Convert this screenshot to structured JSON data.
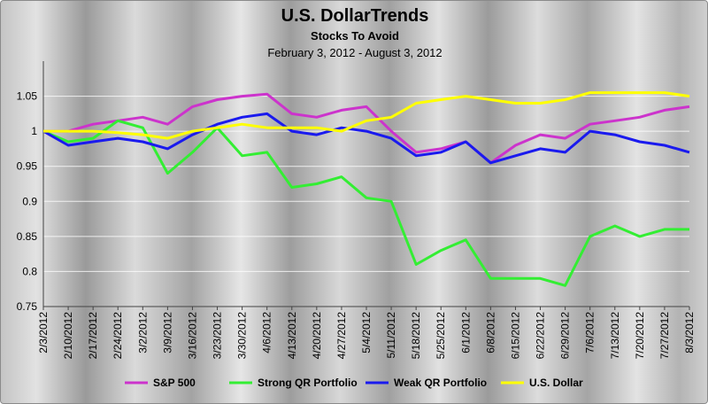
{
  "chart_data": {
    "type": "line",
    "title": "U.S. DollarTrends",
    "subtitle": "Stocks To Avoid",
    "date_range": "February 3, 2012 - August 3, 2012",
    "xlabel": "",
    "ylabel": "",
    "ylim": [
      0.75,
      1.1
    ],
    "yticks": [
      "0.75",
      "0.8",
      "0.85",
      "0.9",
      "0.95",
      "1",
      "1.05"
    ],
    "grid": true,
    "legend_position": "bottom",
    "categories": [
      "2/3/2012",
      "2/10/2012",
      "2/17/2012",
      "2/24/2012",
      "3/2/2012",
      "3/9/2012",
      "3/16/2012",
      "3/23/2012",
      "3/30/2012",
      "4/6/2012",
      "4/13/2012",
      "4/20/2012",
      "4/27/2012",
      "5/4/2012",
      "5/11/2012",
      "5/18/2012",
      "5/25/2012",
      "6/1/2012",
      "6/8/2012",
      "6/15/2012",
      "6/22/2012",
      "6/29/2012",
      "7/6/2012",
      "7/13/2012",
      "7/20/2012",
      "7/27/2012",
      "8/3/2012"
    ],
    "series": [
      {
        "name": "S&P 500",
        "color": "#cc33cc",
        "values": [
          1.0,
          1.0,
          1.01,
          1.015,
          1.02,
          1.01,
          1.035,
          1.045,
          1.05,
          1.053,
          1.025,
          1.02,
          1.03,
          1.035,
          1.0,
          0.97,
          0.975,
          0.985,
          0.955,
          0.98,
          0.995,
          0.99,
          1.01,
          1.015,
          1.02,
          1.03,
          1.035
        ]
      },
      {
        "name": "Strong QR Portfolio",
        "color": "#33ee33",
        "values": [
          1.0,
          0.985,
          0.99,
          1.015,
          1.005,
          0.94,
          0.97,
          1.005,
          0.965,
          0.97,
          0.92,
          0.925,
          0.935,
          0.905,
          0.9,
          0.81,
          0.83,
          0.845,
          0.79,
          0.79,
          0.79,
          0.78,
          0.85,
          0.865,
          0.85,
          0.86,
          0.86
        ]
      },
      {
        "name": "Weak QR Portfolio",
        "color": "#1a1aee",
        "values": [
          1.0,
          0.98,
          0.985,
          0.99,
          0.985,
          0.975,
          0.995,
          1.01,
          1.02,
          1.025,
          1.0,
          0.995,
          1.005,
          1.0,
          0.99,
          0.965,
          0.97,
          0.985,
          0.955,
          0.965,
          0.975,
          0.97,
          1.0,
          0.995,
          0.985,
          0.98,
          0.97
        ]
      },
      {
        "name": "U.S. Dollar",
        "color": "#ffff00",
        "values": [
          1.0,
          1.0,
          1.0,
          0.998,
          0.995,
          0.99,
          1.0,
          1.005,
          1.01,
          1.005,
          1.005,
          1.005,
          1.0,
          1.015,
          1.02,
          1.04,
          1.045,
          1.05,
          1.045,
          1.04,
          1.04,
          1.045,
          1.055,
          1.055,
          1.055,
          1.055,
          1.05
        ]
      }
    ]
  }
}
